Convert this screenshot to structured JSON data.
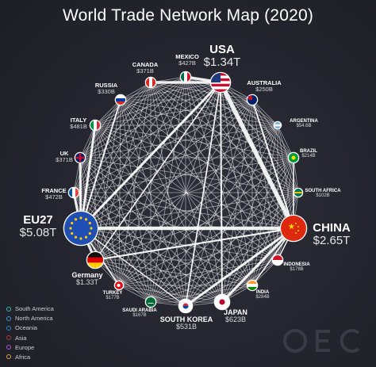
{
  "title": "World Trade Network Map (2020)",
  "countries": [
    {
      "id": "usa",
      "name": "USA",
      "value": "$1.34T",
      "region": "North America"
    },
    {
      "id": "china",
      "name": "CHINA",
      "value": "$2.65T",
      "region": "Asia"
    },
    {
      "id": "eu27",
      "name": "EU27",
      "value": "$5.08T",
      "region": "Europe"
    },
    {
      "id": "canada",
      "name": "CANADA",
      "value": "$371B",
      "region": "North America"
    },
    {
      "id": "mexico",
      "name": "MEXICO",
      "value": "$427B",
      "region": "North America"
    },
    {
      "id": "australia",
      "name": "AUSTRALIA",
      "value": "$250B",
      "region": "Oceania"
    },
    {
      "id": "russia",
      "name": "RUSSIA",
      "value": "$330B",
      "region": "Europe"
    },
    {
      "id": "italy",
      "name": "ITALY",
      "value": "$481B",
      "region": "Europe"
    },
    {
      "id": "uk",
      "name": "UK",
      "value": "$371B",
      "region": "Europe"
    },
    {
      "id": "france",
      "name": "FRANCE",
      "value": "$472B",
      "region": "Europe"
    },
    {
      "id": "germany",
      "name": "Germany",
      "value": "$1.33T",
      "region": "Europe"
    },
    {
      "id": "turkey",
      "name": "TURKEY",
      "value": "$177B",
      "region": "Asia"
    },
    {
      "id": "saudi",
      "name": "SAUDI ARABIA",
      "value": "$167B",
      "region": "Asia"
    },
    {
      "id": "korea",
      "name": "SOUTH KOREA",
      "value": "$531B",
      "region": "Asia"
    },
    {
      "id": "japan",
      "name": "JAPAN",
      "value": "$623B",
      "region": "Asia"
    },
    {
      "id": "india",
      "name": "INDIA",
      "value": "$284B",
      "region": "Asia"
    },
    {
      "id": "indonesia",
      "name": "INDONESIA",
      "value": "$178B",
      "region": "Asia"
    },
    {
      "id": "safrica",
      "name": "SOUTH AFRICA",
      "value": "$102B",
      "region": "Africa"
    },
    {
      "id": "brazil",
      "name": "BRAZIL",
      "value": "$214B",
      "region": "South America"
    },
    {
      "id": "argentina",
      "name": "ARGENTINA",
      "value": "$54.6B",
      "region": "South America"
    }
  ],
  "legend": [
    {
      "label": "South America",
      "color": "#3fb6a8"
    },
    {
      "label": "North America",
      "color": "#3f8fe0"
    },
    {
      "label": "Oceania",
      "color": "#2b86c9"
    },
    {
      "label": "Asia",
      "color": "#b23a3a"
    },
    {
      "label": "Europe",
      "color": "#b94fd0"
    },
    {
      "label": "Africa",
      "color": "#d9a13a"
    }
  ],
  "logo_text": "OEC",
  "colors": {
    "edge": "#ffffff",
    "ring": "#ffffff"
  }
}
